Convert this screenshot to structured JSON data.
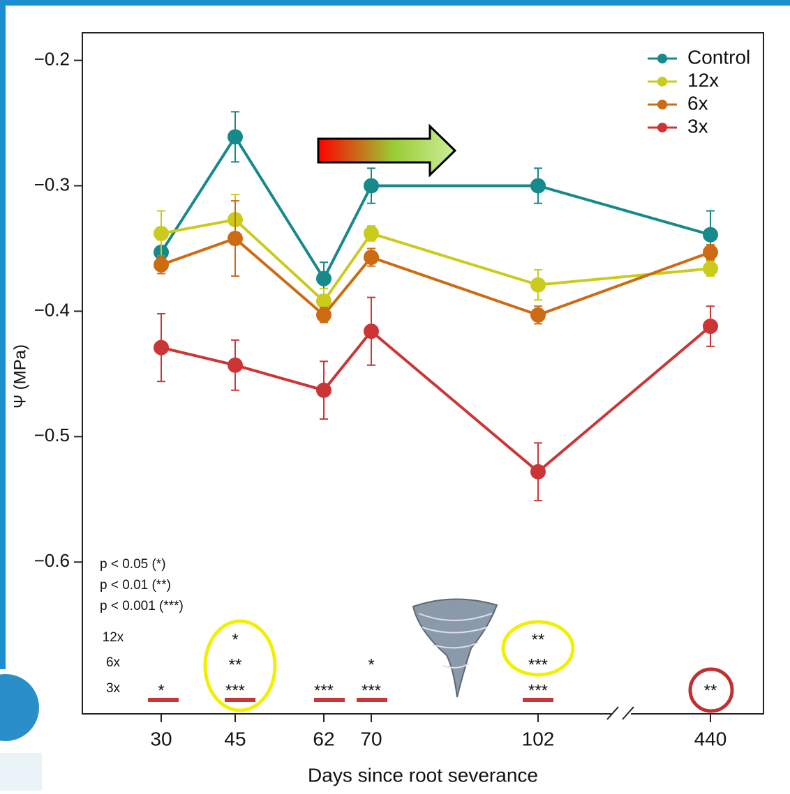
{
  "chart_data": {
    "type": "line",
    "y_label": "Ψ (MPa)",
    "x_label": "Days since root severance",
    "categories": [
      "30",
      "45",
      "62",
      "70",
      "102",
      "440"
    ],
    "series": [
      {
        "name": "Control",
        "color": "#16898a",
        "values": [
          -0.353,
          -0.261,
          -0.374,
          -0.3,
          -0.3,
          -0.339
        ],
        "errors": [
          0.01,
          0.02,
          0.013,
          0.014,
          0.014,
          0.019
        ]
      },
      {
        "name": "12x",
        "color": "#c9cc1c",
        "values": [
          -0.338,
          -0.327,
          -0.392,
          -0.338,
          -0.379,
          -0.366
        ],
        "errors": [
          0.018,
          0.02,
          0.01,
          0.006,
          0.012,
          0.006
        ]
      },
      {
        "name": "6x",
        "color": "#cc6b12",
        "values": [
          -0.363,
          -0.342,
          -0.403,
          -0.357,
          -0.403,
          -0.353
        ],
        "errors": [
          0.007,
          0.03,
          0.006,
          0.007,
          0.007,
          0.006
        ]
      },
      {
        "name": "3x",
        "color": "#cc3535",
        "values": [
          -0.429,
          -0.443,
          -0.463,
          -0.416,
          -0.528,
          -0.412
        ],
        "errors": [
          0.027,
          0.02,
          0.023,
          0.027,
          0.023,
          0.016
        ]
      }
    ],
    "ylim": [
      -0.721,
      -0.178
    ],
    "yticks": [
      {
        "value": -0.2,
        "label": "−0.2"
      },
      {
        "value": -0.3,
        "label": "−0.3"
      },
      {
        "value": -0.4,
        "label": "−0.4"
      },
      {
        "value": -0.5,
        "label": "−0.5"
      },
      {
        "value": -0.6,
        "label": "−0.6"
      }
    ],
    "legend": "top-right",
    "p_legend": [
      "p < 0.05 (*)",
      "p < 0.01 (**)",
      "p < 0.001 (***)"
    ],
    "significance": {
      "rows": [
        "12x",
        "6x",
        "3x"
      ],
      "marks": [
        [
          null,
          "*",
          null,
          null,
          "**",
          null
        ],
        [
          null,
          "**",
          null,
          "*",
          "***",
          null
        ],
        [
          "*",
          "***",
          "***",
          "***",
          "***",
          "**"
        ]
      ]
    }
  }
}
